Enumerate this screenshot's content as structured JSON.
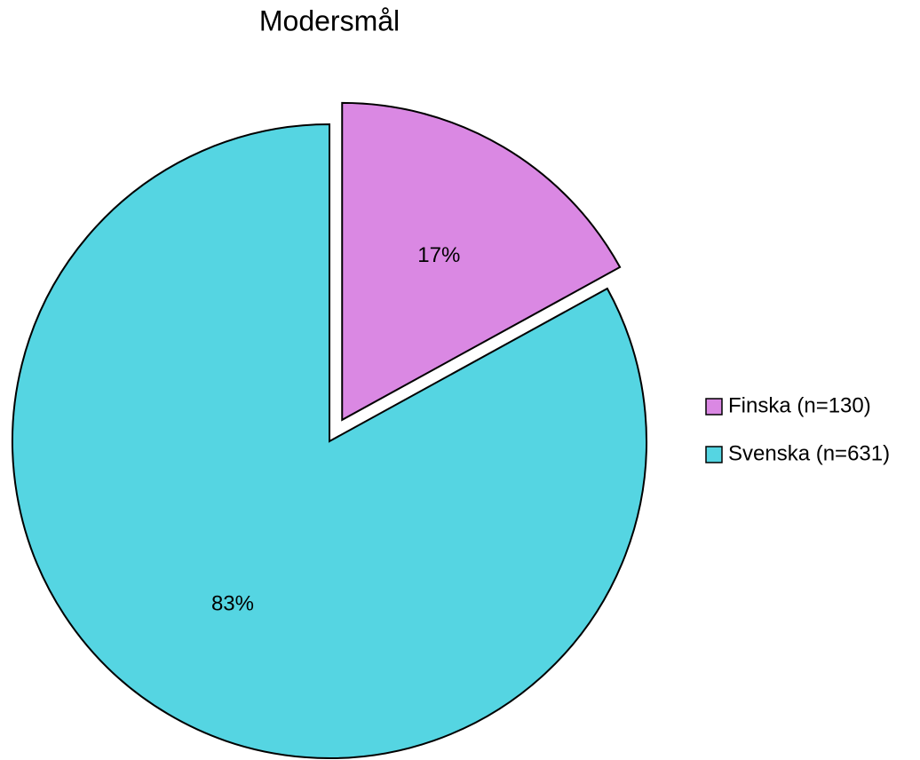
{
  "chart_data": {
    "type": "pie",
    "title": "Modersmål",
    "categories": [
      "Finska (n=130)",
      "Svenska (n=631)"
    ],
    "values": [
      17,
      83
    ],
    "value_labels": [
      "17%",
      "83%"
    ],
    "colors": [
      "#da88e3",
      "#55d5e2"
    ],
    "legend": "right"
  }
}
